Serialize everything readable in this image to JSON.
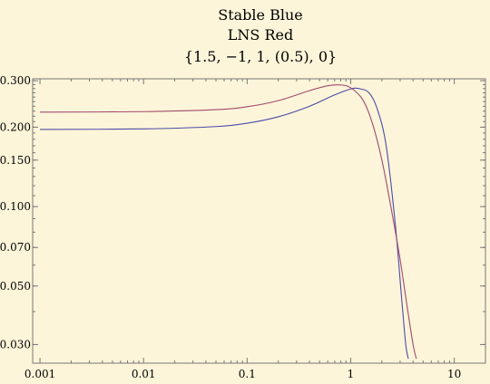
{
  "chart_data": {
    "type": "line",
    "title_lines": [
      "Stable Blue",
      "LNS Red",
      "{1.5, −1, 1, (0.5), 0}"
    ],
    "x_scale": "log",
    "y_scale": "log",
    "xlim": [
      0.00085,
      20
    ],
    "ylim": [
      0.0255,
      0.305
    ],
    "x_ticks": [
      {
        "value": 0.001,
        "label": "0.001"
      },
      {
        "value": 0.01,
        "label": "0.01"
      },
      {
        "value": 0.1,
        "label": "0.1"
      },
      {
        "value": 1,
        "label": "1"
      },
      {
        "value": 10,
        "label": "10"
      }
    ],
    "y_ticks": [
      {
        "value": 0.3,
        "label": "0.300"
      },
      {
        "value": 0.2,
        "label": "0.200"
      },
      {
        "value": 0.15,
        "label": "0.150"
      },
      {
        "value": 0.1,
        "label": "0.100"
      },
      {
        "value": 0.07,
        "label": "0.070"
      },
      {
        "value": 0.05,
        "label": "0.050"
      },
      {
        "value": 0.03,
        "label": "0.030"
      }
    ],
    "frame": true,
    "grid": false,
    "series": [
      {
        "color": "#4b4ba8",
        "x": [
          0.001,
          0.01,
          0.05,
          0.1,
          0.2,
          0.4,
          0.7,
          1.0,
          1.2,
          1.5,
          1.8,
          2.2,
          2.7,
          3.1,
          3.4,
          3.6
        ],
        "y": [
          0.196,
          0.197,
          0.201,
          0.207,
          0.219,
          0.24,
          0.265,
          0.279,
          0.28,
          0.27,
          0.235,
          0.17,
          0.085,
          0.045,
          0.03,
          0.0265
        ]
      },
      {
        "color": "#a04a6e",
        "x": [
          0.001,
          0.01,
          0.05,
          0.1,
          0.2,
          0.4,
          0.6,
          0.8,
          1.0,
          1.3,
          1.6,
          2.0,
          2.5,
          3.0,
          3.5,
          4.0,
          4.3
        ],
        "y": [
          0.228,
          0.229,
          0.233,
          0.239,
          0.252,
          0.275,
          0.287,
          0.289,
          0.282,
          0.255,
          0.21,
          0.15,
          0.095,
          0.063,
          0.042,
          0.03,
          0.0265
        ]
      }
    ]
  }
}
